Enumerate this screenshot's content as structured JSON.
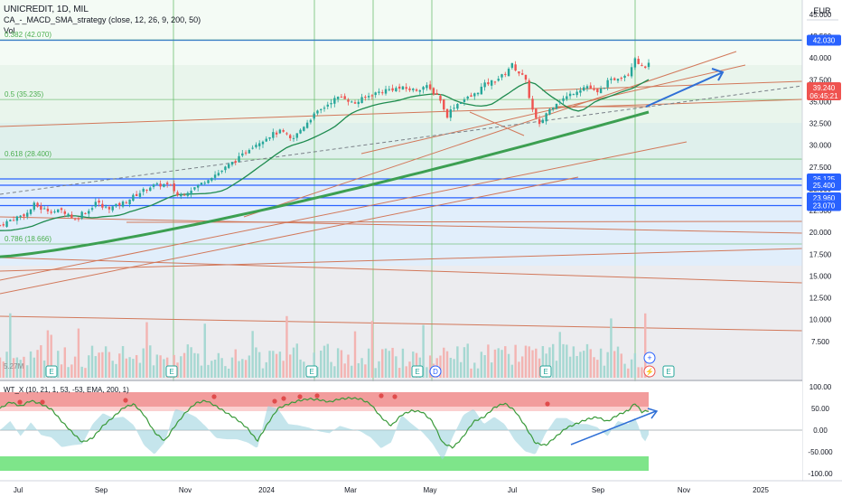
{
  "header": {
    "symbol_line": "UNICREDIT, 1D, MIL",
    "strategy_line": "CA_-_MACD_SMA_strategy (close, 12, 26, 9, 200, 50)",
    "volume_label": "Vol",
    "currency": "EUR",
    "volume_value": "5.27M",
    "oscillator_line": "WT_X (10, 21, 1, 53, -53, EMA, 200, 1)"
  },
  "colors": {
    "up": "#26a69a",
    "down": "#ef5350",
    "sma200": "#3c9f51",
    "sma50": "#1e8b4f",
    "trendline": "#d2785a",
    "blue_arrow": "#2f6fd6",
    "price_label": "#ef5350",
    "level_label": "#2962ff",
    "fib_area": "#e6f4ea",
    "blue_zone": "#dcecfb",
    "grey_zone": "#e6e6ea"
  },
  "chart_data": {
    "type": "candlestick",
    "price_axis": {
      "ticks": [
        "45.000",
        "42.500",
        "40.000",
        "37.500",
        "35.000",
        "32.500",
        "30.000",
        "27.500",
        "25.000",
        "22.500",
        "20.000",
        "17.500",
        "15.000",
        "12.500",
        "10.000",
        "7.500"
      ],
      "tick_values": [
        45,
        42.5,
        40,
        37.5,
        35,
        32.5,
        30,
        27.5,
        25,
        22.5,
        20,
        17.5,
        15,
        12.5,
        10,
        7.5
      ]
    },
    "time_axis": [
      "Jul",
      "Sep",
      "Nov",
      "2024",
      "Mar",
      "May",
      "Jul",
      "Sep",
      "Nov",
      "2025"
    ],
    "fib_levels": [
      {
        "label": "0.382 (42.070)",
        "value": 42.07
      },
      {
        "label": "0.5 (35.235)",
        "value": 35.235
      },
      {
        "label": "0.618 (28.400)",
        "value": 28.4
      },
      {
        "label": "0.786 (18.666)",
        "value": 18.666
      }
    ],
    "horizontal_levels": [
      {
        "label": "42.030",
        "value": 42.03
      },
      {
        "label": "26.125",
        "value": 26.125
      },
      {
        "label": "25.400",
        "value": 25.4
      },
      {
        "label": "23.960",
        "value": 23.96
      },
      {
        "label": "23.070",
        "value": 23.07
      }
    ],
    "last_price": {
      "label": "39.240",
      "countdown": "06:45:21",
      "value": 39.24
    },
    "price_path": [
      {
        "t": 0,
        "p": 20.8
      },
      {
        "t": 4,
        "p": 21.6
      },
      {
        "t": 8,
        "p": 22.2
      },
      {
        "t": 10,
        "p": 23.2
      },
      {
        "t": 12,
        "p": 22.7
      },
      {
        "t": 16,
        "p": 22.4
      },
      {
        "t": 18,
        "p": 22.5
      },
      {
        "t": 20,
        "p": 22.1
      },
      {
        "t": 22,
        "p": 21.4
      },
      {
        "t": 24,
        "p": 22.3
      },
      {
        "t": 26,
        "p": 22.5
      },
      {
        "t": 28,
        "p": 23.6
      },
      {
        "t": 30,
        "p": 22.8
      },
      {
        "t": 33,
        "p": 22.9
      },
      {
        "t": 36,
        "p": 23.4
      },
      {
        "t": 40,
        "p": 24.4
      },
      {
        "t": 44,
        "p": 25.3
      },
      {
        "t": 48,
        "p": 25.5
      },
      {
        "t": 50,
        "p": 25.2
      },
      {
        "t": 52,
        "p": 24.1
      },
      {
        "t": 55,
        "p": 24.8
      },
      {
        "t": 58,
        "p": 25.4
      },
      {
        "t": 61,
        "p": 26.3
      },
      {
        "t": 64,
        "p": 26.9
      },
      {
        "t": 67,
        "p": 27.8
      },
      {
        "t": 70,
        "p": 28.6
      },
      {
        "t": 73,
        "p": 29.8
      },
      {
        "t": 76,
        "p": 30.5
      },
      {
        "t": 79,
        "p": 31.2
      },
      {
        "t": 82,
        "p": 31.6
      },
      {
        "t": 85,
        "p": 30.5
      },
      {
        "t": 88,
        "p": 32.0
      },
      {
        "t": 91,
        "p": 33.3
      },
      {
        "t": 94,
        "p": 34.2
      },
      {
        "t": 97,
        "p": 35.2
      },
      {
        "t": 100,
        "p": 35.6
      },
      {
        "t": 103,
        "p": 34.7
      },
      {
        "t": 106,
        "p": 35.4
      },
      {
        "t": 109,
        "p": 35.9
      },
      {
        "t": 112,
        "p": 36.3
      },
      {
        "t": 115,
        "p": 36.5
      },
      {
        "t": 118,
        "p": 36.5
      },
      {
        "t": 121,
        "p": 36.3
      },
      {
        "t": 124,
        "p": 36.8
      },
      {
        "t": 126,
        "p": 36.1
      },
      {
        "t": 128,
        "p": 35.6
      },
      {
        "t": 130,
        "p": 33.2
      },
      {
        "t": 132,
        "p": 34.4
      },
      {
        "t": 135,
        "p": 35.2
      },
      {
        "t": 138,
        "p": 35.7
      },
      {
        "t": 141,
        "p": 36.9
      },
      {
        "t": 144,
        "p": 37.4
      },
      {
        "t": 147,
        "p": 38.1
      },
      {
        "t": 149,
        "p": 39.3
      },
      {
        "t": 151,
        "p": 38.4
      },
      {
        "t": 153,
        "p": 37.6
      },
      {
        "t": 155,
        "p": 34.2
      },
      {
        "t": 157,
        "p": 32.1
      },
      {
        "t": 159,
        "p": 33.6
      },
      {
        "t": 162,
        "p": 34.9
      },
      {
        "t": 165,
        "p": 35.5
      },
      {
        "t": 168,
        "p": 36.3
      },
      {
        "t": 171,
        "p": 36.8
      },
      {
        "t": 174,
        "p": 35.9
      },
      {
        "t": 177,
        "p": 37.2
      },
      {
        "t": 180,
        "p": 37.8
      },
      {
        "t": 183,
        "p": 38.2
      },
      {
        "t": 185,
        "p": 40.1
      },
      {
        "t": 187,
        "p": 38.9
      },
      {
        "t": 189,
        "p": 39.2
      }
    ],
    "oscillator_axis": {
      "ticks": [
        "100.00",
        "50.00",
        "0.00",
        "-50.000",
        "-100.00"
      ],
      "tick_values": [
        100,
        50,
        0,
        -50,
        -100
      ]
    },
    "oscillator_path": [
      {
        "t": 0,
        "v": 50
      },
      {
        "t": 3,
        "v": 65
      },
      {
        "t": 6,
        "v": 55
      },
      {
        "t": 9,
        "v": 68
      },
      {
        "t": 12,
        "v": 60
      },
      {
        "t": 15,
        "v": 48
      },
      {
        "t": 18,
        "v": 20
      },
      {
        "t": 21,
        "v": -5
      },
      {
        "t": 24,
        "v": -28
      },
      {
        "t": 27,
        "v": -18
      },
      {
        "t": 30,
        "v": 10
      },
      {
        "t": 33,
        "v": 30
      },
      {
        "t": 36,
        "v": 52
      },
      {
        "t": 39,
        "v": 60
      },
      {
        "t": 42,
        "v": 35
      },
      {
        "t": 45,
        "v": -5
      },
      {
        "t": 48,
        "v": -25
      },
      {
        "t": 51,
        "v": 10
      },
      {
        "t": 54,
        "v": 40
      },
      {
        "t": 57,
        "v": 62
      },
      {
        "t": 60,
        "v": 68
      },
      {
        "t": 63,
        "v": 55
      },
      {
        "t": 66,
        "v": 40
      },
      {
        "t": 69,
        "v": 25
      },
      {
        "t": 72,
        "v": 5
      },
      {
        "t": 75,
        "v": -25
      },
      {
        "t": 78,
        "v": 15
      },
      {
        "t": 81,
        "v": 50
      },
      {
        "t": 84,
        "v": 60
      },
      {
        "t": 87,
        "v": 68
      },
      {
        "t": 90,
        "v": 72
      },
      {
        "t": 93,
        "v": 70
      },
      {
        "t": 96,
        "v": 65
      },
      {
        "t": 99,
        "v": 72
      },
      {
        "t": 102,
        "v": 74
      },
      {
        "t": 105,
        "v": 72
      },
      {
        "t": 108,
        "v": 60
      },
      {
        "t": 111,
        "v": 30
      },
      {
        "t": 114,
        "v": 10
      },
      {
        "t": 117,
        "v": 35
      },
      {
        "t": 120,
        "v": 45
      },
      {
        "t": 123,
        "v": 42
      },
      {
        "t": 126,
        "v": 20
      },
      {
        "t": 129,
        "v": -30
      },
      {
        "t": 132,
        "v": -40
      },
      {
        "t": 135,
        "v": -15
      },
      {
        "t": 138,
        "v": 20
      },
      {
        "t": 141,
        "v": 30
      },
      {
        "t": 144,
        "v": 52
      },
      {
        "t": 147,
        "v": 62
      },
      {
        "t": 150,
        "v": 45
      },
      {
        "t": 153,
        "v": 10
      },
      {
        "t": 156,
        "v": -30
      },
      {
        "t": 159,
        "v": -35
      },
      {
        "t": 162,
        "v": -15
      },
      {
        "t": 165,
        "v": 5
      },
      {
        "t": 168,
        "v": 15
      },
      {
        "t": 171,
        "v": 25
      },
      {
        "t": 174,
        "v": 30
      },
      {
        "t": 177,
        "v": 20
      },
      {
        "t": 180,
        "v": 35
      },
      {
        "t": 183,
        "v": 45
      },
      {
        "t": 185,
        "v": 62
      },
      {
        "t": 187,
        "v": 42
      },
      {
        "t": 189,
        "v": 45
      }
    ],
    "event_markers": [
      "E",
      "E",
      "E",
      "E",
      "D",
      "E",
      "E",
      "E",
      "E"
    ]
  }
}
